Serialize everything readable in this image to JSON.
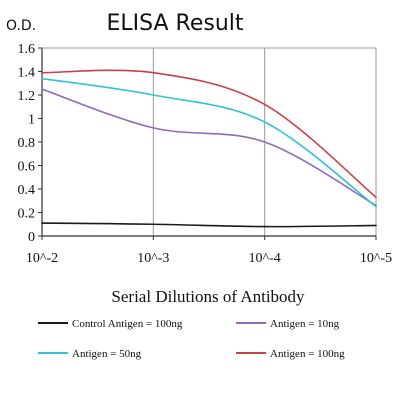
{
  "chart_data": {
    "type": "line",
    "title": "ELISA Result",
    "ylabel": "O.D.",
    "xlabel": "Serial Dilutions of Antibody",
    "categories": [
      "10^-2",
      "10^-3",
      "10^-4",
      "10^-5"
    ],
    "ylim": [
      0,
      1.6
    ],
    "yticks": [
      "0",
      "0.2",
      "0.4",
      "0.6",
      "0.8",
      "1",
      "1.2",
      "1.4",
      "1.6"
    ],
    "grid": "vertical",
    "legend_position": "bottom",
    "series": [
      {
        "name": "Control Antigen = 100ng",
        "color": "#1a1a1a",
        "values": [
          0.11,
          0.1,
          0.08,
          0.09
        ]
      },
      {
        "name": "Antigen = 10ng",
        "color": "#8e6bb8",
        "values": [
          1.25,
          0.92,
          0.8,
          0.26
        ]
      },
      {
        "name": "Antigen = 50ng",
        "color": "#33c2d6",
        "values": [
          1.34,
          1.2,
          0.97,
          0.25
        ]
      },
      {
        "name": "Antigen = 100ng",
        "color": "#c8404a",
        "values": [
          1.39,
          1.39,
          1.12,
          0.33
        ]
      }
    ]
  }
}
